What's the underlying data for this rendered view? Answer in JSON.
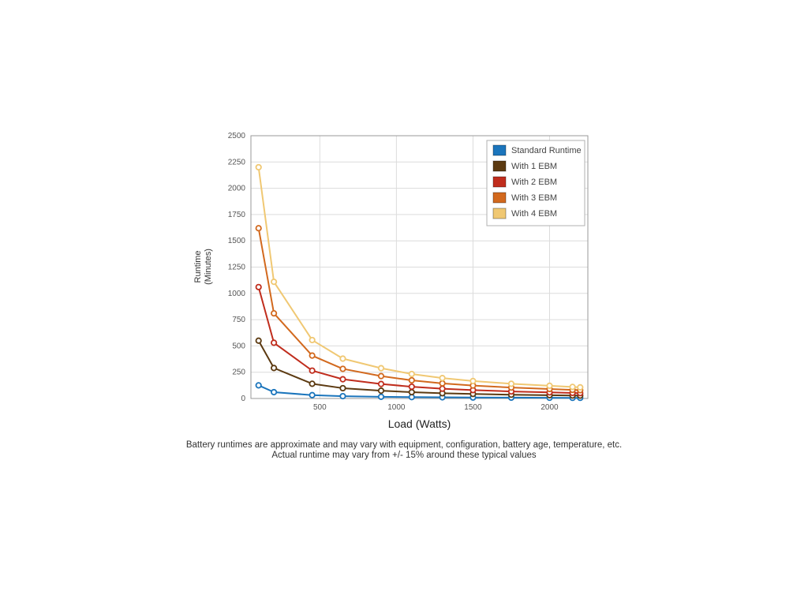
{
  "page": {
    "background": "#ffffff"
  },
  "chart_data": {
    "type": "line",
    "title": "",
    "xlabel": "Load (Watts)",
    "ylabel_lines": [
      "Runtime",
      "(Minutes)"
    ],
    "xlim": [
      50,
      2250
    ],
    "ylim": [
      0,
      2500
    ],
    "x_ticks": [
      500,
      1000,
      1500,
      2000
    ],
    "y_ticks": [
      0,
      250,
      500,
      750,
      1000,
      1250,
      1500,
      1750,
      2000,
      2250,
      2500
    ],
    "grid": true,
    "legend_position": "top-right",
    "marker": "open-circle",
    "x": [
      100,
      200,
      450,
      650,
      900,
      1100,
      1300,
      1500,
      1750,
      2000,
      2150,
      2200
    ],
    "series": [
      {
        "name": "Standard Runtime",
        "color": "#1b75bc",
        "values": [
          125,
          60,
          32,
          22,
          16,
          13,
          11,
          9,
          8,
          7,
          6,
          6
        ]
      },
      {
        "name": "With 1 EBM",
        "color": "#5c3a11",
        "values": [
          550,
          290,
          140,
          98,
          74,
          60,
          50,
          43,
          36,
          31,
          28,
          27
        ]
      },
      {
        "name": "With 2 EBM",
        "color": "#c02d1d",
        "values": [
          1060,
          530,
          265,
          183,
          138,
          112,
          93,
          80,
          67,
          58,
          53,
          51
        ]
      },
      {
        "name": "With 3 EBM",
        "color": "#d2691e",
        "values": [
          1620,
          810,
          408,
          282,
          213,
          173,
          144,
          123,
          104,
          90,
          82,
          79
        ]
      },
      {
        "name": "With 4 EBM",
        "color": "#f0c873",
        "values": [
          2200,
          1110,
          556,
          379,
          288,
          233,
          194,
          166,
          140,
          121,
          110,
          106
        ]
      }
    ]
  },
  "footnote": {
    "line1": "Battery runtimes are approximate and may vary with equipment, configuration, battery age, temperature, etc.",
    "line2": "Actual runtime may vary from +/- 15% around these typical values"
  }
}
